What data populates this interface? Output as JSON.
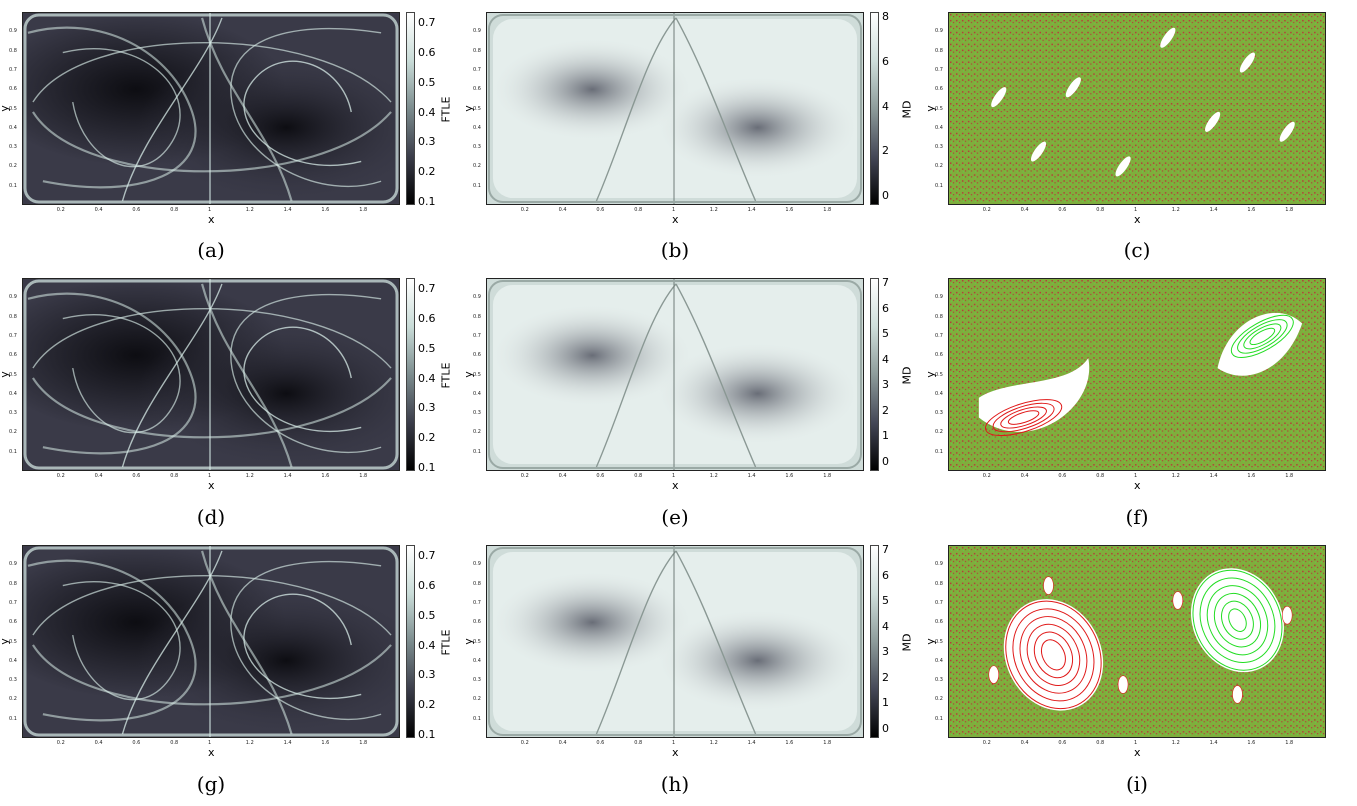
{
  "figure": {
    "panels": [
      {
        "id": "a",
        "kind": "ftle",
        "caption": "(a)",
        "xlabel": "x",
        "ylabel": "y",
        "cbar_label": "FTLE",
        "cbar_ticks": [
          "0.7",
          "0.6",
          "0.5",
          "0.4",
          "0.3",
          "0.2",
          "0.1"
        ]
      },
      {
        "id": "b",
        "kind": "md",
        "caption": "(b)",
        "xlabel": "x",
        "ylabel": "y",
        "cbar_label": "MD",
        "cbar_ticks": [
          "8",
          "6",
          "4",
          "2",
          "0"
        ]
      },
      {
        "id": "c",
        "kind": "poincare",
        "caption": "(c)",
        "xlabel": "x",
        "ylabel": "y"
      },
      {
        "id": "d",
        "kind": "ftle",
        "caption": "(d)",
        "xlabel": "x",
        "ylabel": "y",
        "cbar_label": "FTLE",
        "cbar_ticks": [
          "0.7",
          "0.6",
          "0.5",
          "0.4",
          "0.3",
          "0.2",
          "0.1"
        ]
      },
      {
        "id": "e",
        "kind": "md",
        "caption": "(e)",
        "xlabel": "x",
        "ylabel": "y",
        "cbar_label": "MD",
        "cbar_ticks": [
          "7",
          "6",
          "5",
          "4",
          "3",
          "2",
          "1",
          "0"
        ]
      },
      {
        "id": "f",
        "kind": "poincare",
        "caption": "(f)",
        "xlabel": "x",
        "ylabel": "y"
      },
      {
        "id": "g",
        "kind": "ftle",
        "caption": "(g)",
        "xlabel": "x",
        "ylabel": "y",
        "cbar_label": "FTLE",
        "cbar_ticks": [
          "0.7",
          "0.6",
          "0.5",
          "0.4",
          "0.3",
          "0.2",
          "0.1"
        ]
      },
      {
        "id": "h",
        "kind": "md",
        "caption": "(h)",
        "xlabel": "x",
        "ylabel": "y",
        "cbar_label": "MD",
        "cbar_ticks": [
          "7",
          "6",
          "5",
          "4",
          "3",
          "2",
          "1",
          "0"
        ]
      },
      {
        "id": "i",
        "kind": "poincare",
        "caption": "(i)",
        "xlabel": "x",
        "ylabel": "y"
      }
    ],
    "x_ticks": [
      "0.2",
      "0.4",
      "0.6",
      "0.8",
      "1",
      "1.2",
      "1.4",
      "1.6",
      "1.8"
    ],
    "y_ticks": [
      "0.9",
      "0.8",
      "0.7",
      "0.6",
      "0.5",
      "0.4",
      "0.3",
      "0.2",
      "0.1"
    ],
    "colors": {
      "ftle_dark": "#1b1b22",
      "ftle_light": "#d8ece8",
      "md_light": "#eef5f3",
      "md_dark": "#4a4d5a",
      "chaos_green": "#7fae3c",
      "chaos_red": "#b3413a",
      "island_red": "#e01818",
      "island_green": "#22dd22"
    }
  }
}
